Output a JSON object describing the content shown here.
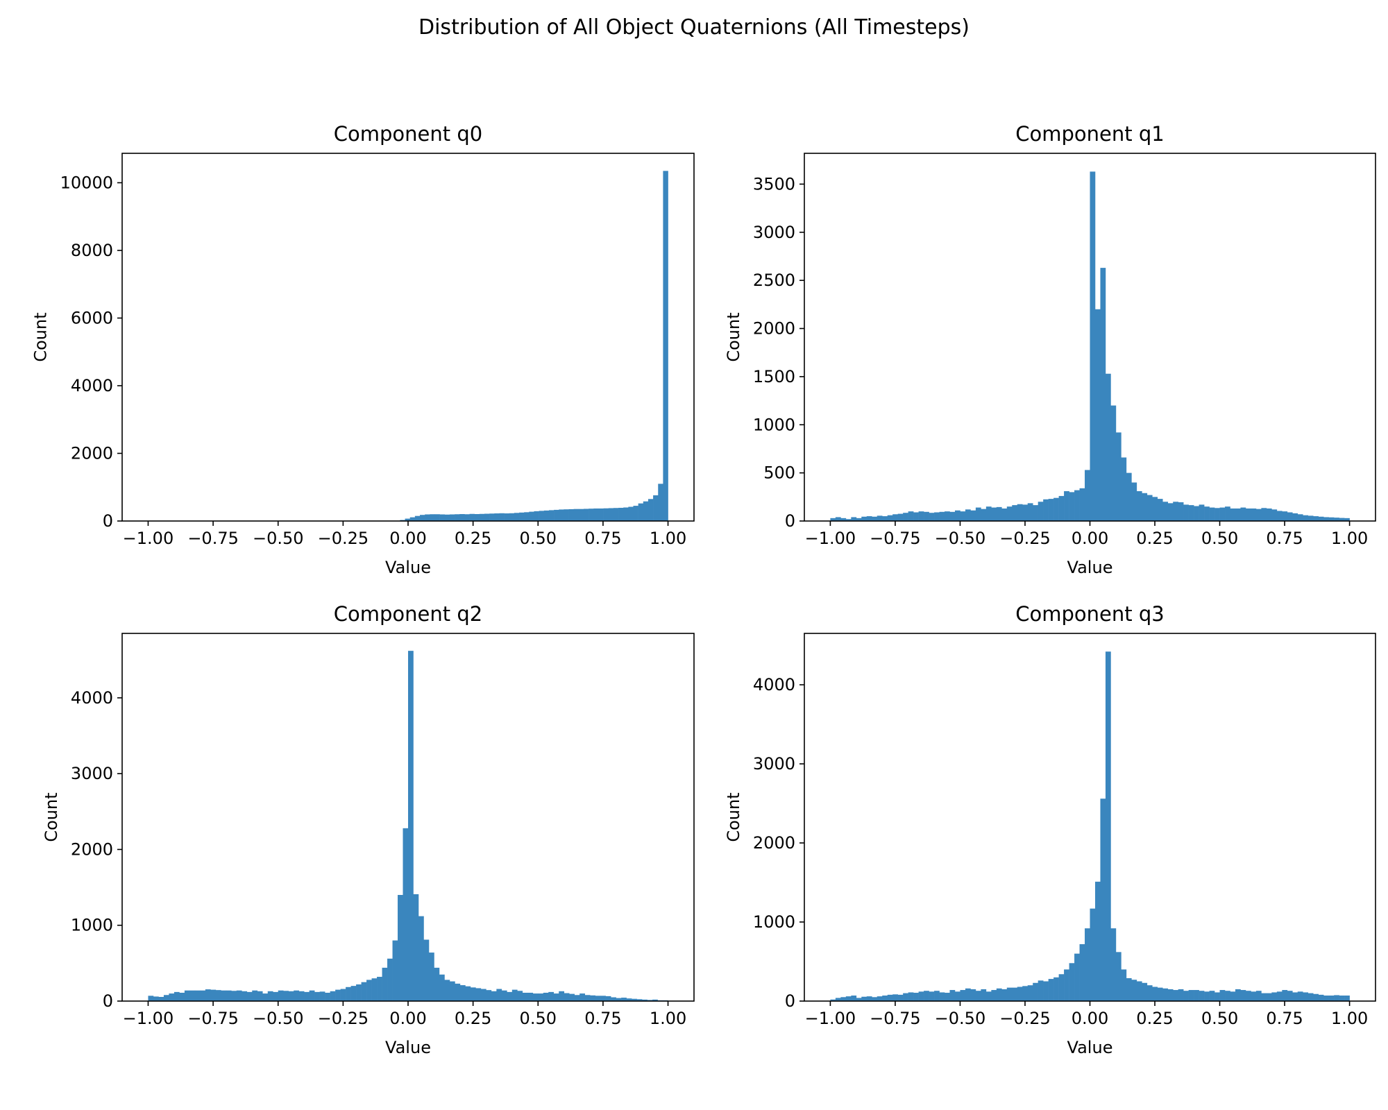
{
  "figure": {
    "suptitle": "Distribution of All Object Quaternions (All Timesteps)",
    "bar_color": "#3a86be",
    "background": "#ffffff"
  },
  "chart_data": [
    {
      "type": "bar",
      "title": "Component q0",
      "xlabel": "Value",
      "ylabel": "Count",
      "xlim": [
        -1.1,
        1.1
      ],
      "ylim": [
        0,
        10870
      ],
      "xticks": [
        -1.0,
        -0.75,
        -0.5,
        -0.25,
        0.0,
        0.25,
        0.5,
        0.75,
        1.0
      ],
      "xtick_labels": [
        "−1.00",
        "−0.75",
        "−0.50",
        "−0.25",
        "0.00",
        "0.25",
        "0.50",
        "0.75",
        "1.00"
      ],
      "yticks": [
        0,
        2000,
        4000,
        6000,
        8000,
        10000
      ],
      "ytick_labels": [
        "0",
        "2000",
        "4000",
        "6000",
        "8000",
        "10000"
      ],
      "bin_range": [
        -0.05,
        1.0
      ],
      "values": [
        8,
        30,
        70,
        110,
        150,
        180,
        195,
        200,
        200,
        195,
        190,
        195,
        200,
        205,
        200,
        210,
        205,
        210,
        215,
        220,
        225,
        230,
        225,
        230,
        240,
        250,
        260,
        275,
        290,
        300,
        310,
        320,
        330,
        340,
        345,
        350,
        355,
        355,
        360,
        365,
        370,
        370,
        375,
        380,
        385,
        390,
        400,
        420,
        450,
        520,
        580,
        650,
        760,
        1100,
        10350
      ]
    },
    {
      "type": "bar",
      "title": "Component q1",
      "xlabel": "Value",
      "ylabel": "Count",
      "xlim": [
        -1.1,
        1.1
      ],
      "ylim": [
        0,
        3820
      ],
      "xticks": [
        -1.0,
        -0.75,
        -0.5,
        -0.25,
        0.0,
        0.25,
        0.5,
        0.75,
        1.0
      ],
      "xtick_labels": [
        "−1.00",
        "−0.75",
        "−0.50",
        "−0.25",
        "0.00",
        "0.25",
        "0.50",
        "0.75",
        "1.00"
      ],
      "yticks": [
        0,
        500,
        1000,
        1500,
        2000,
        2500,
        3000,
        3500
      ],
      "ytick_labels": [
        "0",
        "500",
        "1000",
        "1500",
        "2000",
        "2500",
        "3000",
        "3500"
      ],
      "bin_range": [
        -1.0,
        1.0
      ],
      "values": [
        30,
        40,
        30,
        20,
        40,
        30,
        45,
        50,
        45,
        55,
        50,
        60,
        70,
        75,
        85,
        100,
        90,
        100,
        95,
        85,
        90,
        95,
        100,
        95,
        110,
        100,
        120,
        110,
        140,
        125,
        150,
        140,
        145,
        130,
        150,
        165,
        175,
        170,
        185,
        165,
        200,
        225,
        230,
        240,
        260,
        310,
        300,
        320,
        340,
        530,
        3630,
        2200,
        2630,
        1530,
        1200,
        920,
        660,
        500,
        400,
        310,
        290,
        270,
        250,
        230,
        200,
        185,
        200,
        195,
        170,
        165,
        155,
        170,
        150,
        140,
        135,
        140,
        150,
        130,
        130,
        140,
        130,
        130,
        125,
        135,
        130,
        120,
        105,
        100,
        90,
        80,
        70,
        60,
        55,
        50,
        45,
        40,
        38,
        35,
        32,
        30
      ]
    },
    {
      "type": "bar",
      "title": "Component q2",
      "xlabel": "Value",
      "ylabel": "Count",
      "xlim": [
        -1.1,
        1.1
      ],
      "ylim": [
        0,
        4850
      ],
      "xticks": [
        -1.0,
        -0.75,
        -0.5,
        -0.25,
        0.0,
        0.25,
        0.5,
        0.75,
        1.0
      ],
      "xtick_labels": [
        "−1.00",
        "−0.75",
        "−0.50",
        "−0.25",
        "0.00",
        "0.25",
        "0.50",
        "0.75",
        "1.00"
      ],
      "yticks": [
        0,
        1000,
        2000,
        3000,
        4000
      ],
      "ytick_labels": [
        "0",
        "1000",
        "2000",
        "3000",
        "4000"
      ],
      "bin_range": [
        -1.0,
        1.0
      ],
      "values": [
        70,
        60,
        55,
        80,
        100,
        120,
        110,
        140,
        140,
        140,
        140,
        155,
        150,
        145,
        140,
        140,
        135,
        140,
        130,
        120,
        140,
        130,
        100,
        130,
        120,
        140,
        135,
        130,
        140,
        130,
        120,
        140,
        120,
        125,
        110,
        130,
        150,
        160,
        185,
        200,
        220,
        250,
        280,
        300,
        320,
        440,
        560,
        800,
        1400,
        2280,
        4620,
        1410,
        1120,
        810,
        640,
        440,
        350,
        280,
        260,
        230,
        210,
        195,
        180,
        170,
        160,
        145,
        130,
        160,
        140,
        120,
        150,
        135,
        110,
        110,
        100,
        100,
        110,
        120,
        100,
        130,
        105,
        95,
        80,
        100,
        80,
        75,
        70,
        70,
        65,
        50,
        40,
        45,
        35,
        30,
        25,
        20,
        15,
        20,
        10,
        10
      ]
    },
    {
      "type": "bar",
      "title": "Component q3",
      "xlabel": "Value",
      "ylabel": "Count",
      "xlim": [
        -1.1,
        1.1
      ],
      "ylim": [
        0,
        4650
      ],
      "xticks": [
        -1.0,
        -0.75,
        -0.5,
        -0.25,
        0.0,
        0.25,
        0.5,
        0.75,
        1.0
      ],
      "xtick_labels": [
        "−1.00",
        "−0.75",
        "−0.50",
        "−0.25",
        "0.00",
        "0.25",
        "0.50",
        "0.75",
        "1.00"
      ],
      "yticks": [
        0,
        1000,
        2000,
        3000,
        4000
      ],
      "ytick_labels": [
        "0",
        "1000",
        "2000",
        "3000",
        "4000"
      ],
      "bin_range": [
        -1.0,
        1.0
      ],
      "values": [
        20,
        40,
        50,
        60,
        70,
        40,
        55,
        60,
        50,
        60,
        70,
        80,
        85,
        80,
        100,
        110,
        105,
        120,
        130,
        120,
        130,
        110,
        105,
        140,
        120,
        140,
        160,
        150,
        130,
        150,
        120,
        140,
        160,
        150,
        170,
        170,
        180,
        190,
        200,
        230,
        260,
        250,
        280,
        300,
        340,
        400,
        480,
        600,
        720,
        920,
        1170,
        1510,
        2560,
        4420,
        920,
        620,
        400,
        290,
        270,
        250,
        230,
        200,
        180,
        170,
        160,
        150,
        140,
        150,
        130,
        140,
        140,
        130,
        120,
        130,
        110,
        140,
        130,
        120,
        150,
        140,
        130,
        120,
        130,
        100,
        100,
        110,
        120,
        140,
        130,
        110,
        120,
        110,
        100,
        90,
        80,
        70,
        70,
        75,
        70,
        70
      ]
    }
  ]
}
